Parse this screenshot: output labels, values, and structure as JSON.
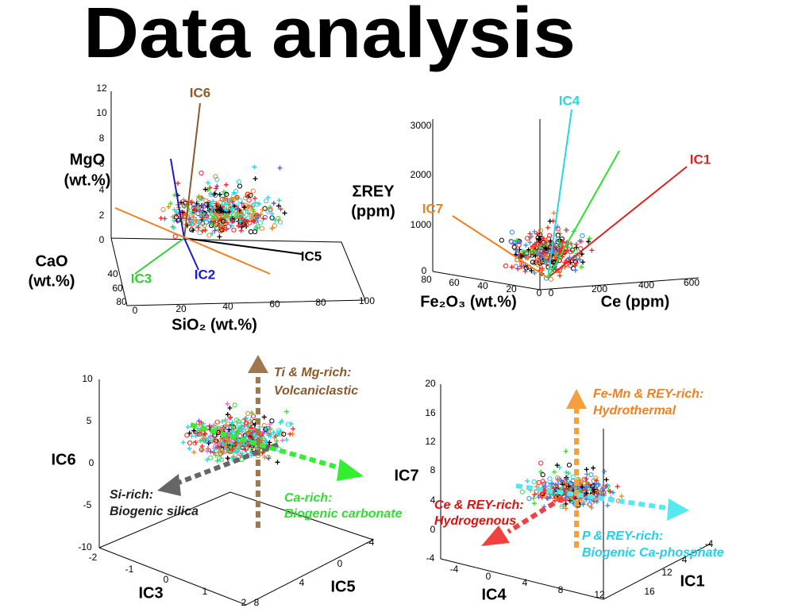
{
  "title": "Data analysis",
  "panels": [
    {
      "axes": [
        {
          "title": [
            "MgO",
            "(wt.%)"
          ],
          "ticks": [
            12,
            10,
            8,
            6,
            4,
            2,
            0
          ]
        },
        {
          "title": [
            "CaO",
            "(wt.%)"
          ],
          "ticks": [
            40,
            60,
            80
          ]
        },
        {
          "title": [
            "SiO₂ (wt.%)"
          ],
          "ticks": [
            0,
            20,
            40,
            60,
            80,
            100
          ]
        }
      ],
      "annotations": [
        {
          "text": [
            "IC6"
          ],
          "color": "#8b5a2b"
        },
        {
          "text": [
            "IC5"
          ],
          "color": "#000000"
        },
        {
          "text": [
            "IC3"
          ],
          "color": "#33cc33"
        },
        {
          "text": [
            "IC2"
          ],
          "color": "#1a1acc"
        }
      ]
    },
    {
      "axes": [
        {
          "title": [
            "ΣREY",
            "(ppm)"
          ],
          "ticks": [
            3000,
            2000,
            1000,
            0
          ]
        },
        {
          "title": [
            "Fe₂O₃ (wt.%)"
          ],
          "ticks": [
            80,
            60,
            40,
            20,
            0
          ]
        },
        {
          "title": [
            "Ce (ppm)"
          ],
          "ticks": [
            0,
            200,
            400,
            600
          ]
        }
      ],
      "annotations": [
        {
          "text": [
            "IC4"
          ],
          "color": "#22d8e0"
        },
        {
          "text": [
            "IC1"
          ],
          "color": "#e02020"
        },
        {
          "text": [
            "IC7"
          ],
          "color": "#f08020"
        }
      ]
    },
    {
      "axes": [
        {
          "title": [
            "IC6"
          ],
          "ticks": [
            10,
            5,
            0,
            -5,
            -10
          ]
        },
        {
          "title": [
            "IC3"
          ],
          "ticks": [
            -2,
            -1,
            0,
            1,
            2
          ]
        },
        {
          "title": [
            "IC5"
          ],
          "ticks": [
            -4,
            0,
            4,
            8
          ]
        }
      ],
      "annotations": [
        {
          "text": [
            "Ti & Mg-rich:",
            "Volcaniclastic"
          ],
          "color": "#8b5a2b"
        },
        {
          "text": [
            "Si-rich:",
            "Biogenic silica"
          ],
          "color": "#222222"
        },
        {
          "text": [
            "Ca-rich:",
            "Biogenic carbonate"
          ],
          "color": "#33dd33"
        }
      ]
    },
    {
      "axes": [
        {
          "title": [
            "IC7"
          ],
          "ticks": [
            20,
            16,
            12,
            8,
            4,
            0,
            -4
          ]
        },
        {
          "title": [
            "IC4"
          ],
          "ticks": [
            -4,
            0,
            4,
            8,
            12
          ]
        },
        {
          "title": [
            "IC1"
          ],
          "ticks": [
            -4,
            4,
            12,
            16
          ]
        }
      ],
      "annotations": [
        {
          "text": [
            "Fe-Mn & REY-rich:",
            "Hydrothermal"
          ],
          "color": "#f08020"
        },
        {
          "text": [
            "Ce & REY-rich:",
            "Hydrogenous"
          ],
          "color": "#e01010"
        },
        {
          "text": [
            "P & REY-rich:",
            "Biogenic Ca-phosphate"
          ],
          "color": "#22d0e8"
        }
      ]
    }
  ]
}
